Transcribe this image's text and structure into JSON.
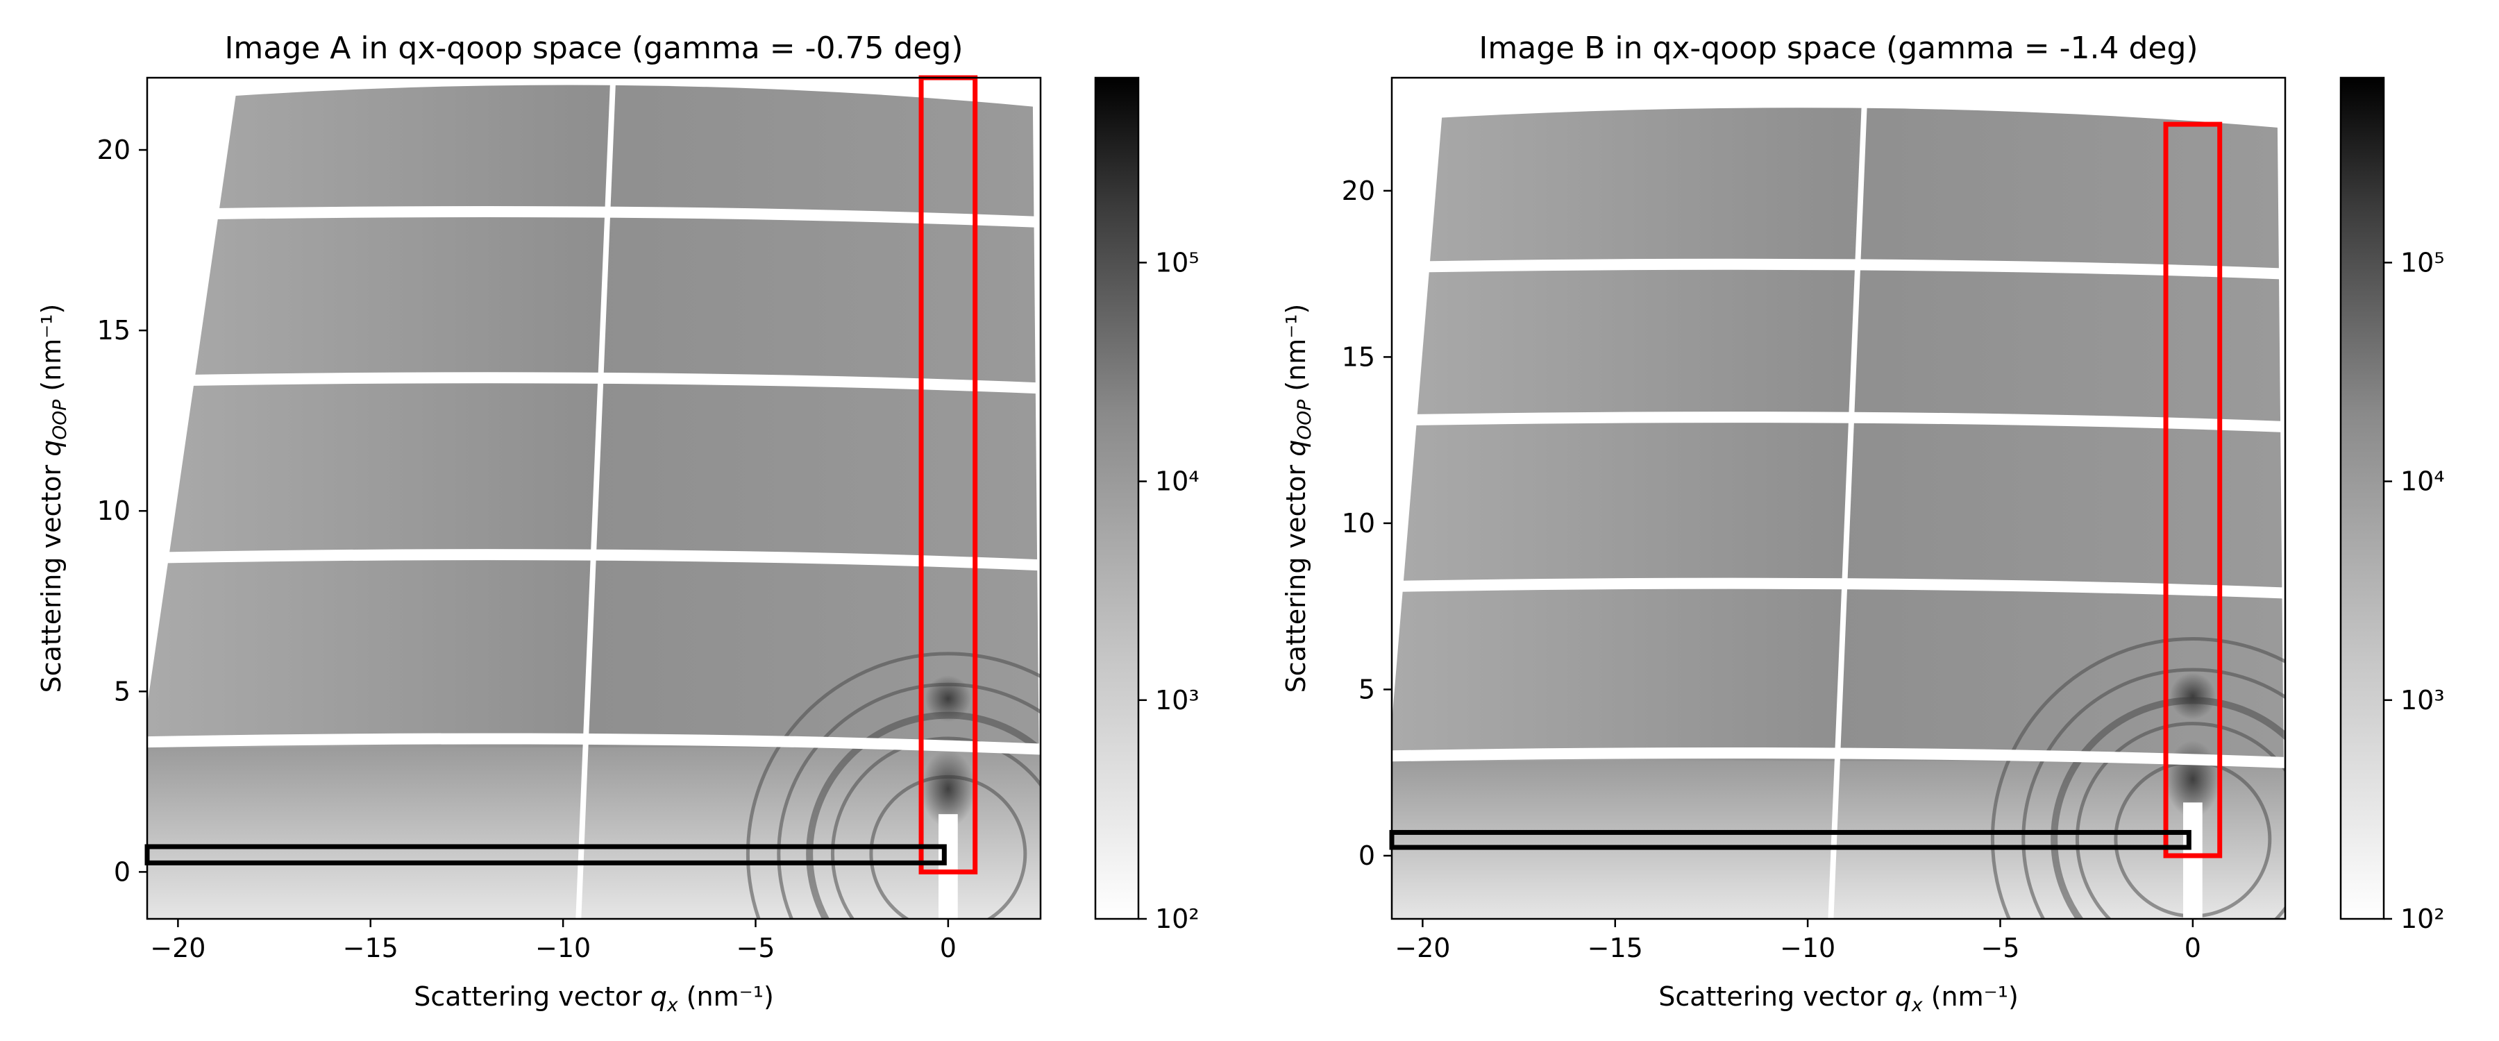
{
  "chart_data": [
    {
      "type": "heatmap",
      "title": "Image A in qx-qoop space (gamma = -0.75 deg)",
      "xlabel": "Scattering vector qx (nm⁻¹)",
      "ylabel": "Scattering vector qOOP (nm⁻¹)",
      "xlim": [
        -20.8,
        2.4
      ],
      "ylim": [
        -1.3,
        22.0
      ],
      "xticks": [
        -20,
        -15,
        -10,
        -5,
        0
      ],
      "yticks": [
        0,
        5,
        10,
        15,
        20
      ],
      "colorbar": {
        "scale": "log",
        "range": [
          100,
          700000
        ],
        "ticks": [
          100,
          1000,
          10000,
          100000
        ],
        "tick_labels": [
          "10²",
          "10³",
          "10⁴",
          "10⁵"
        ],
        "colormap": "gray_r"
      },
      "detector_gaps_qoop": [
        3.6,
        8.7,
        13.6,
        18.2
      ],
      "detector_gap_qx": -9.6,
      "red_box": {
        "x": [
          -0.7,
          0.7
        ],
        "y": [
          0.0,
          22.0
        ]
      },
      "black_box": {
        "x": [
          -20.8,
          -0.1
        ],
        "y": [
          0.25,
          0.7
        ]
      },
      "colors": {
        "red_box": "#ff0000",
        "black_box": "#000000"
      }
    },
    {
      "type": "heatmap",
      "title": "Image B in qx-qoop space (gamma = -1.4 deg)",
      "xlabel": "Scattering vector qx (nm⁻¹)",
      "ylabel": "Scattering vector qOOP (nm⁻¹)",
      "xlim": [
        -20.8,
        2.4
      ],
      "ylim": [
        -1.9,
        23.4
      ],
      "xticks": [
        -20,
        -15,
        -10,
        -5,
        0
      ],
      "yticks": [
        0,
        5,
        10,
        15,
        20
      ],
      "colorbar": {
        "scale": "log",
        "range": [
          100,
          700000
        ],
        "ticks": [
          100,
          1000,
          10000,
          100000
        ],
        "tick_labels": [
          "10²",
          "10³",
          "10⁴",
          "10⁵"
        ],
        "colormap": "gray_r"
      },
      "detector_gaps_qoop": [
        3.0,
        8.1,
        13.1,
        17.7
      ],
      "detector_gap_qx": -9.4,
      "red_box": {
        "x": [
          -0.7,
          0.7
        ],
        "y": [
          0.0,
          22.0
        ]
      },
      "black_box": {
        "x": [
          -20.8,
          -0.1
        ],
        "y": [
          0.25,
          0.7
        ]
      },
      "colors": {
        "red_box": "#ff0000",
        "black_box": "#000000"
      }
    }
  ]
}
